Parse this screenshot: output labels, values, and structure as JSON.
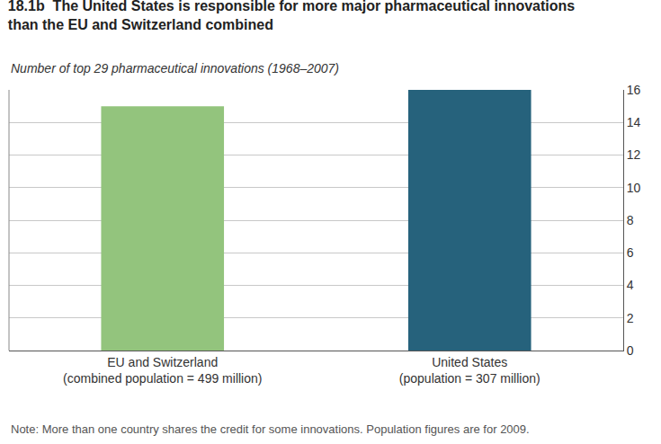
{
  "chart_data": {
    "type": "bar",
    "title": "18.1b  The United States is responsible for more major pharmaceutical innovations\nthan the EU and Switzerland combined",
    "subtitle": "Number of top 29 pharmaceutical innovations (1968–2007)",
    "categories": [
      "EU and Switzerland\n(combined population = 499 million)",
      "United States\n(population = 307 million)"
    ],
    "values": [
      15,
      16
    ],
    "colors": [
      "#93c47d",
      "#26627c"
    ],
    "ylim": [
      0,
      16
    ],
    "yticks": [
      0,
      2,
      4,
      6,
      8,
      10,
      12,
      14,
      16
    ],
    "grid": true,
    "annotations": [
      "Note: More than one country shares the credit for some innovations. Population figures are for 2009."
    ]
  }
}
